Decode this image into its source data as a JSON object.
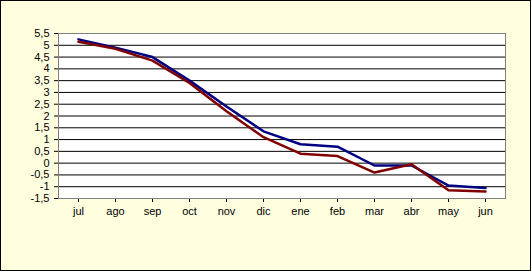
{
  "chart_data": {
    "type": "line",
    "categories": [
      "jul",
      "ago",
      "sep",
      "oct",
      "nov",
      "dic",
      "ene",
      "feb",
      "mar",
      "abr",
      "may",
      "jun"
    ],
    "series": [
      {
        "color": "#000080",
        "values": [
          5.25,
          4.9,
          4.5,
          3.5,
          2.4,
          1.35,
          0.8,
          0.7,
          -0.1,
          -0.1,
          -0.95,
          -1.05
        ]
      },
      {
        "color": "#800000",
        "values": [
          5.15,
          4.85,
          4.35,
          3.4,
          2.2,
          1.1,
          0.4,
          0.3,
          -0.4,
          -0.05,
          -1.15,
          -1.2
        ]
      }
    ],
    "ylim": [
      -1.5,
      5.5
    ],
    "yticks": [
      {
        "value": -1.5,
        "label": "-1,5"
      },
      -1,
      {
        "value": -0.5,
        "label": "-0,5"
      },
      0,
      {
        "value": 0.5,
        "label": "0,5"
      },
      1,
      {
        "value": 1.5,
        "label": "1,5"
      },
      2,
      {
        "value": 2.5,
        "label": "2,5"
      },
      3,
      {
        "value": 3.5,
        "label": "3,5"
      },
      4,
      {
        "value": 4.5,
        "label": "4,5"
      },
      5,
      {
        "value": 5.5,
        "label": "5,5"
      }
    ],
    "grid": true
  }
}
